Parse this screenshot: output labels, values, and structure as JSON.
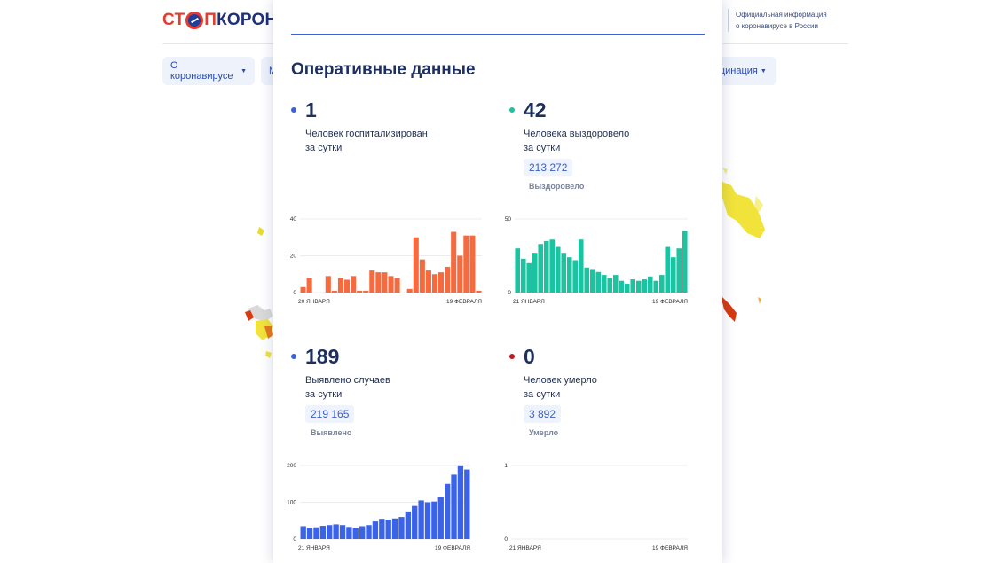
{
  "header": {
    "logo": {
      "part1": "СТ",
      "part2": "П",
      "part3": "КОРОНАВ"
    },
    "official_line1": "Официальная информация",
    "official_line2": "о коронавирусе в России"
  },
  "nav": {
    "item1": "О коронавирусе",
    "item2": "М",
    "item3": "кцинация"
  },
  "modal": {
    "title": "Оперативные данные",
    "stats": {
      "hospitalized": {
        "value": "1",
        "desc1": "Человек госпитализирован",
        "desc2": "за сутки",
        "dot_color": "#3b63d9"
      },
      "recovered": {
        "value": "42",
        "desc1": "Человека выздоровело",
        "desc2": "за сутки",
        "total": "213 272",
        "total_label": "Выздоровело",
        "dot_color": "#1cc3a0"
      },
      "cases": {
        "value": "189",
        "desc1": "Выявлено случаев",
        "desc2": "за сутки",
        "total": "219 165",
        "total_label": "Выявлено",
        "dot_color": "#3b63d9"
      },
      "deaths": {
        "value": "0",
        "desc1": "Человек умерло",
        "desc2": "за сутки",
        "total": "3 892",
        "total_label": "Умерло",
        "dot_color": "#c0181d"
      }
    }
  },
  "chart_data": [
    {
      "type": "bar",
      "id": "hospitalized",
      "color": "#f56a3f",
      "ylim": [
        0,
        40
      ],
      "yticks": [
        0,
        20,
        40
      ],
      "x_start": "20 ЯНВАРЯ",
      "x_end": "19 ФЕВРАЛЯ",
      "values": [
        3,
        8,
        0,
        0,
        9,
        1,
        8,
        7,
        9,
        1,
        1,
        12,
        11,
        11,
        9,
        8,
        0,
        2,
        30,
        18,
        12,
        10,
        11,
        14,
        33,
        20,
        31,
        31,
        1
      ]
    },
    {
      "type": "bar",
      "id": "recovered",
      "color": "#1cc3a0",
      "ylim": [
        0,
        50
      ],
      "yticks": [
        0,
        50
      ],
      "x_start": "21 ЯНВАРЯ",
      "x_end": "19 ФЕВРАЛЯ",
      "values": [
        30,
        23,
        20,
        27,
        33,
        35,
        36,
        31,
        27,
        24,
        22,
        36,
        17,
        16,
        14,
        12,
        10,
        12,
        8,
        6,
        9,
        8,
        9,
        11,
        8,
        12,
        31,
        24,
        30,
        42
      ]
    },
    {
      "type": "bar",
      "id": "cases",
      "color": "#3b63e8",
      "ylim": [
        0,
        200
      ],
      "yticks": [
        0,
        100,
        200
      ],
      "x_start": "21 ЯНВАРЯ",
      "x_end": "19 ФЕВРАЛЯ",
      "values": [
        35,
        30,
        32,
        36,
        38,
        40,
        38,
        33,
        29,
        35,
        38,
        48,
        55,
        53,
        56,
        60,
        75,
        90,
        105,
        100,
        102,
        115,
        150,
        175,
        198,
        189
      ]
    },
    {
      "type": "bar",
      "id": "deaths",
      "color": "#c0181d",
      "ylim": [
        0,
        1
      ],
      "yticks": [
        0,
        1
      ],
      "x_start": "21 ЯНВАРЯ",
      "x_end": "19 ФЕВРАЛЯ",
      "values": []
    }
  ]
}
